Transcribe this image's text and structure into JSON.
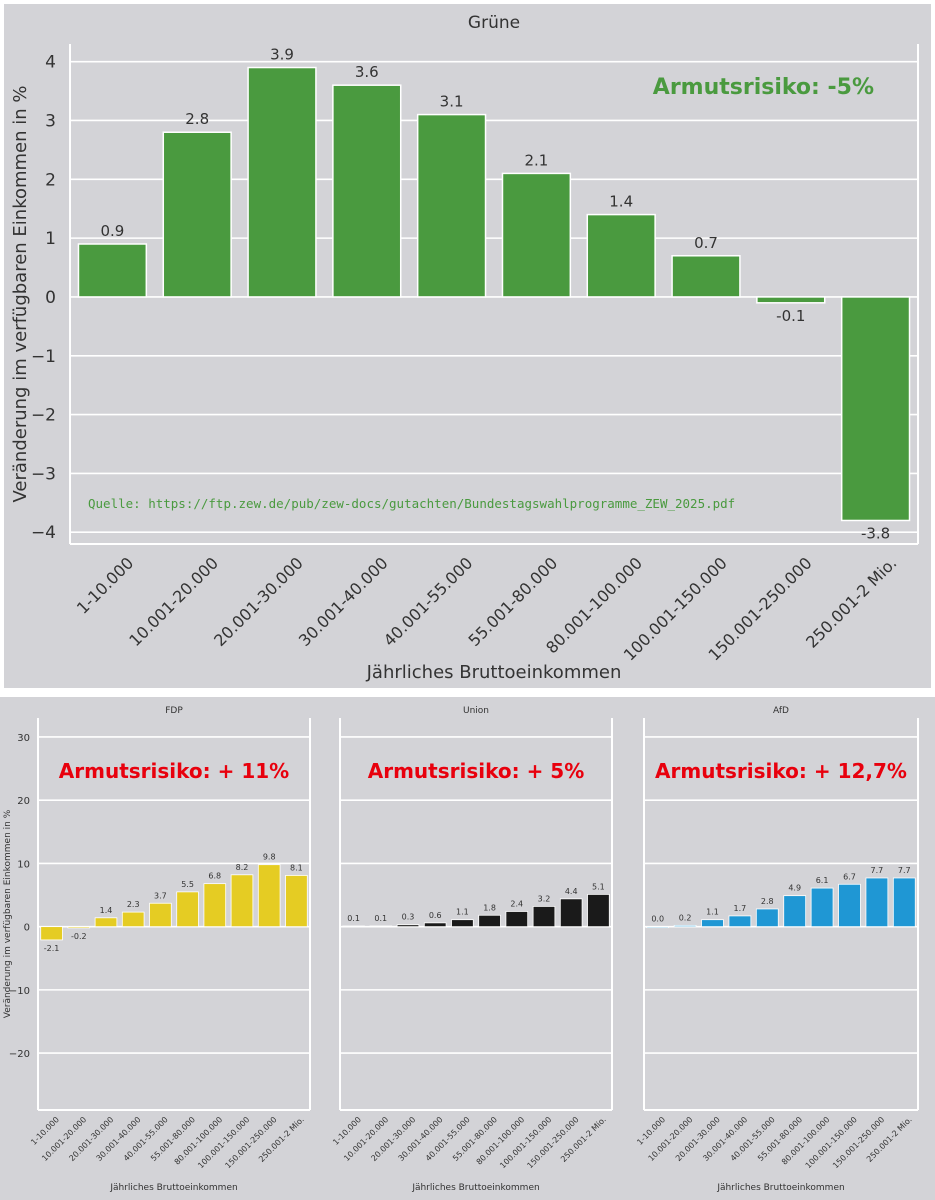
{
  "chart_data": [
    {
      "type": "bar",
      "title": "Grüne",
      "xlabel": "Jährliches Bruttoeinkommen",
      "ylabel": "Veränderung im verfügbaren Einkommen in %",
      "categories": [
        "1-10.000",
        "10.001-20.000",
        "20.001-30.000",
        "30.001-40.000",
        "40.001-55.000",
        "55.001-80.000",
        "80.001-100.000",
        "100.001-150.000",
        "150.001-250.000",
        "250.001-2 Mio."
      ],
      "values": [
        0.9,
        2.8,
        3.9,
        3.6,
        3.1,
        2.1,
        1.4,
        0.7,
        -0.1,
        -3.8
      ],
      "data_labels": [
        "0.9",
        "2.8",
        "3.9",
        "3.6",
        "3.1",
        "2.1",
        "1.4",
        "0.7",
        "-0.1",
        "-3.8"
      ],
      "ylim": [
        -4.2,
        4.3
      ],
      "yticks": [
        4,
        3,
        2,
        1,
        0,
        -1,
        -2,
        -3,
        -4
      ],
      "ytick_labels": [
        "4",
        "3",
        "2",
        "1",
        "0",
        "−1",
        "−2",
        "−3",
        "−4"
      ],
      "grid": true,
      "color": "#4a9a3f",
      "annotation": "Armutsrisiko: -5%",
      "annotation_color": "#4a9a3f",
      "source": "Quelle: https://ftp.zew.de/pub/zew-docs/gutachten/Bundestagswahlprogramme_ZEW_2025.pdf"
    },
    {
      "type": "bar",
      "title": "FDP",
      "xlabel": "Jährliches Bruttoeinkommen",
      "ylabel": "Veränderung im verfügbaren Einkommen in %",
      "categories": [
        "1-10.000",
        "10.001-20.000",
        "20.001-30.000",
        "30.001-40.000",
        "40.001-55.000",
        "55.001-80.000",
        "80.001-100.000",
        "100.001-150.000",
        "150.001-250.000",
        "250.001-2 Mio."
      ],
      "values": [
        -2.1,
        -0.2,
        1.4,
        2.3,
        3.7,
        5.5,
        6.8,
        8.2,
        9.8,
        8.1
      ],
      "data_labels": [
        "-2.1",
        "-0.2",
        "1.4",
        "2.3",
        "3.7",
        "5.5",
        "6.8",
        "8.2",
        "9.8",
        "8.1"
      ],
      "ylim": [
        -29,
        33
      ],
      "yticks": [
        30,
        20,
        10,
        0,
        -10,
        -20
      ],
      "ytick_labels": [
        "30",
        "20",
        "10",
        "0",
        "−10",
        "−20"
      ],
      "grid": true,
      "color": "#e5cc23",
      "annotation": "Armutsrisiko: + 11%",
      "annotation_color": "#e8000d"
    },
    {
      "type": "bar",
      "title": "Union",
      "xlabel": "Jährliches Bruttoeinkommen",
      "categories": [
        "1-10.000",
        "10.001-20.000",
        "20.001-30.000",
        "30.001-40.000",
        "40.001-55.000",
        "55.001-80.000",
        "80.001-100.000",
        "100.001-150.000",
        "150.001-250.000",
        "250.001-2 Mio."
      ],
      "values": [
        0.1,
        0.1,
        0.3,
        0.6,
        1.1,
        1.8,
        2.4,
        3.2,
        4.4,
        5.1
      ],
      "data_labels": [
        "0.1",
        "0.1",
        "0.3",
        "0.6",
        "1.1",
        "1.8",
        "2.4",
        "3.2",
        "4.4",
        "5.1"
      ],
      "ylim": [
        -29,
        33
      ],
      "grid": true,
      "color": "#1a1a1a",
      "annotation": "Armutsrisiko: + 5%",
      "annotation_color": "#e8000d"
    },
    {
      "type": "bar",
      "title": "AfD",
      "xlabel": "Jährliches Bruttoeinkommen",
      "categories": [
        "1-10.000",
        "10.001-20.000",
        "20.001-30.000",
        "30.001-40.000",
        "40.001-55.000",
        "55.001-80.000",
        "80.001-100.000",
        "100.001-150.000",
        "150.001-250.000",
        "250.001-2 Mio."
      ],
      "values": [
        0.0,
        0.2,
        1.1,
        1.7,
        2.8,
        4.9,
        6.1,
        6.7,
        7.7,
        7.7
      ],
      "data_labels": [
        "0.0",
        "0.2",
        "1.1",
        "1.7",
        "2.8",
        "4.9",
        "6.1",
        "6.7",
        "7.7",
        "7.7"
      ],
      "ylim": [
        -29,
        33
      ],
      "grid": true,
      "color": "#1f97d4",
      "annotation": "Armutsrisiko: + 12,7%",
      "annotation_color": "#e8000d"
    }
  ]
}
